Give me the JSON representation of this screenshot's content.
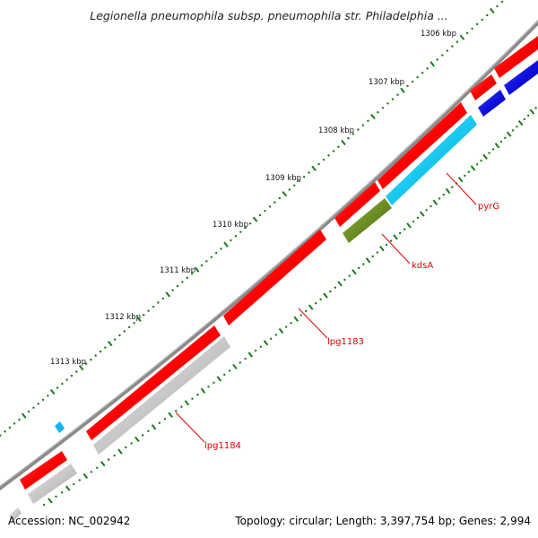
{
  "title": "Legionella pneumophila subsp. pneumophila str. Philadelphia ...",
  "footer": {
    "accession": "Accession: NC_002942",
    "genome_info": "Topology: circular; Length: 3,397,754 bp; Genes: 2,994"
  },
  "colors": {
    "backbone": "#8a8a8a",
    "forward_cds": "#ff0000",
    "reverse_cds_gray": "#c8c8c8",
    "reverse_cds_blue": "#1010e0",
    "reverse_cds_cyan": "#18c8f0",
    "reverse_cds_olive": "#6b8e23",
    "gc_skew": "#1a7a1a",
    "label": "#e00000"
  },
  "ticks": [
    {
      "label": "1306 kbp"
    },
    {
      "label": "1307 kbp"
    },
    {
      "label": "1308 kbp"
    },
    {
      "label": "1309 kbp"
    },
    {
      "label": "1310 kbp"
    },
    {
      "label": "1311 kbp"
    },
    {
      "label": "1312 kbp"
    },
    {
      "label": "1313 kbp"
    }
  ],
  "gene_labels": [
    {
      "name": "pyrG"
    },
    {
      "name": "kdsA"
    },
    {
      "name": "lpg1183"
    },
    {
      "name": "lpg1184"
    }
  ]
}
